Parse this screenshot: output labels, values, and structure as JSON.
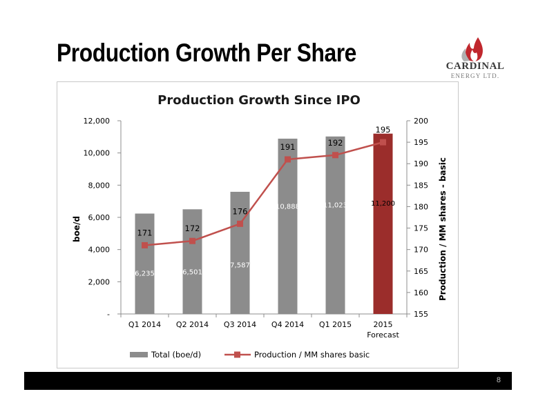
{
  "slide": {
    "title": "Production Growth Per Share",
    "page_number": "8"
  },
  "logo": {
    "name": "CARDINAL",
    "subtitle": "ENERGY LTD."
  },
  "colors": {
    "bar": "#8c8c8c",
    "bar_forecast": "#9b2d2b",
    "line": "#c0504d",
    "footer": "#000000"
  },
  "chart_data": {
    "type": "bar",
    "title": "Production Growth Since IPO",
    "categories": [
      [
        "Q1 2014"
      ],
      [
        "Q2 2014"
      ],
      [
        "Q3 2014"
      ],
      [
        "Q4 2014"
      ],
      [
        "Q1 2015"
      ],
      [
        "2015",
        "Forecast"
      ]
    ],
    "series": [
      {
        "name": "Total (boe/d)",
        "type": "bar",
        "axis": "left",
        "values": [
          6235,
          6501,
          7587,
          10888,
          11023,
          11200
        ],
        "labels": [
          "6,235",
          "6,501",
          "7,587",
          "10,888",
          "11,023",
          "11,200"
        ]
      },
      {
        "name": "Production / MM shares basic",
        "type": "line",
        "axis": "right",
        "values": [
          171,
          172,
          176,
          191,
          192,
          195
        ],
        "labels": [
          "171",
          "172",
          "176",
          "191",
          "192",
          "195"
        ]
      }
    ],
    "ylabel": "boe/d",
    "y2label": "Production / MM shares - basic",
    "ylim": [
      0,
      12000
    ],
    "y2lim": [
      155,
      200
    ],
    "y_ticks": [
      "-",
      "2,000",
      "4,000",
      "6,000",
      "8,000",
      "10,000",
      "12,000"
    ],
    "y2_ticks": [
      "155",
      "160",
      "165",
      "170",
      "175",
      "180",
      "185",
      "190",
      "195",
      "200"
    ],
    "legend_position": "bottom",
    "grid": false
  }
}
